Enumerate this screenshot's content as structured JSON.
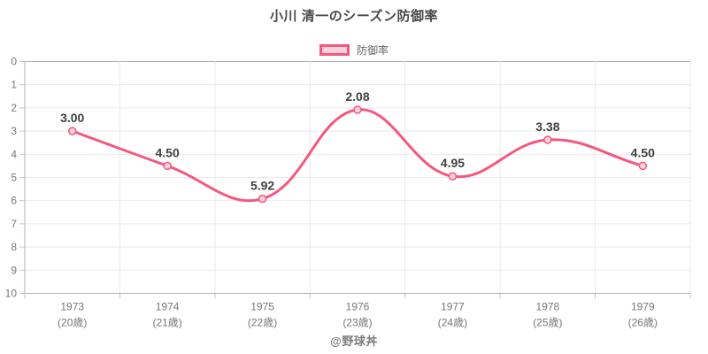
{
  "title": "小川 清一のシーズン防御率",
  "legend": {
    "label": "防御率"
  },
  "footer": "@野球丼",
  "colors": {
    "line": "#f4587e",
    "point_fill": "#fad1dc",
    "grid": "#e9e9e9",
    "axis_line": "#b1b1b1",
    "tick_mark": "#c6c6c6",
    "axis_text": "#777777",
    "data_label_text": "#3f3f3f",
    "title_text": "#4a4a4a",
    "legend_text": "#666666",
    "footer_text": "#7d7d7d"
  },
  "chart_data": {
    "type": "line",
    "title": "小川 清一のシーズン防御率",
    "categories": [
      "1973",
      "1974",
      "1975",
      "1976",
      "1977",
      "1978",
      "1979"
    ],
    "category_sublabels": [
      "(20歳)",
      "(21歳)",
      "(22歳)",
      "(23歳)",
      "(24歳)",
      "(25歳)",
      "(26歳)"
    ],
    "series": [
      {
        "name": "防御率",
        "values": [
          3.0,
          4.5,
          5.92,
          2.08,
          4.95,
          3.38,
          4.5
        ],
        "point_labels": [
          "3.00",
          "4.50",
          "5.92",
          "2.08",
          "4.95",
          "3.38",
          "4.50"
        ]
      }
    ],
    "y_axis": {
      "min": 0,
      "max": 10,
      "reversed": true,
      "ticks": [
        0,
        1,
        2,
        3,
        4,
        5,
        6,
        7,
        8,
        9,
        10
      ]
    },
    "grid": true,
    "legend_position": "top",
    "line_smoothing": 0.4,
    "area_fill": false
  }
}
